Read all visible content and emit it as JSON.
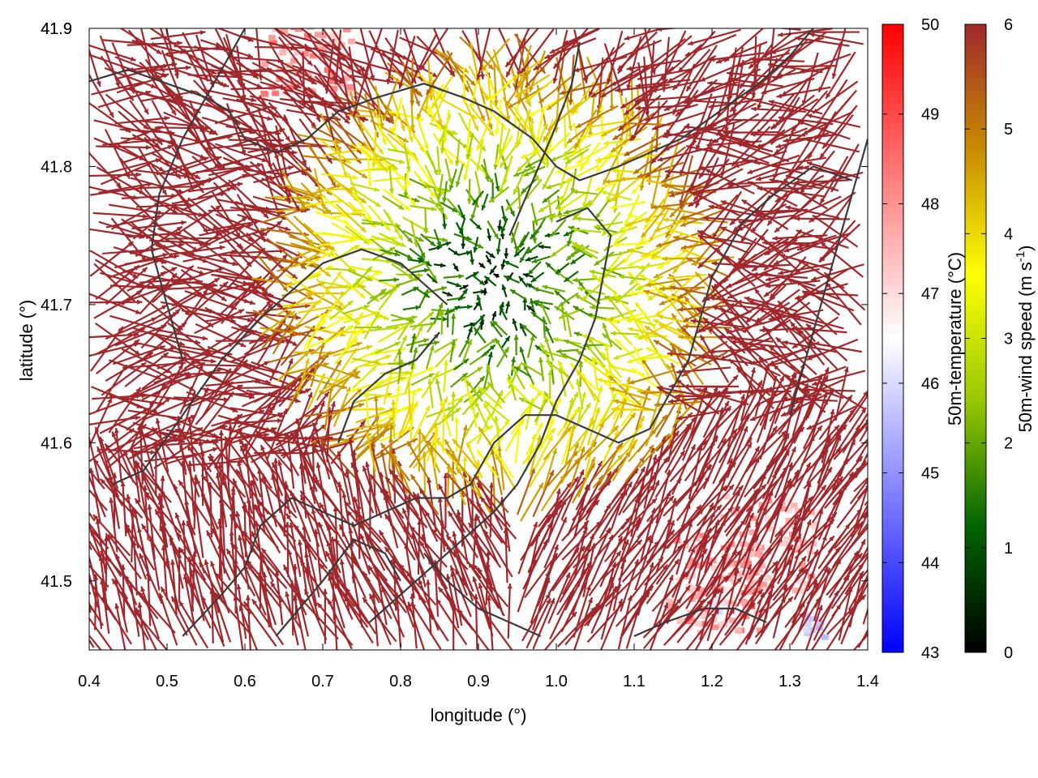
{
  "chart_data": {
    "type": "vector-field",
    "xlabel": "longitude (°)",
    "ylabel": "latitude (°)",
    "xlim": [
      0.4,
      1.4
    ],
    "ylim": [
      41.45,
      41.9
    ],
    "xticks": [
      "0.4",
      "0.5",
      "0.6",
      "0.7",
      "0.8",
      "0.9",
      "1.0",
      "1.1",
      "1.2",
      "1.3",
      "1.4"
    ],
    "yticks": [
      "41.5",
      "41.6",
      "41.7",
      "41.8",
      "41.9"
    ],
    "wind_sample_grid_deg": 0.015,
    "temperature_colorbar": {
      "label": "50m-temperature (°C)",
      "range": [
        43,
        50
      ],
      "ticks": [
        "43",
        "44",
        "45",
        "46",
        "47",
        "48",
        "49",
        "50"
      ],
      "colors": [
        "#0000ff",
        "#ffffff",
        "#ff0000"
      ]
    },
    "windspeed_colorbar": {
      "label": "50m-wind speed (m s",
      "label_superscript": "-1",
      "label_suffix": ")",
      "range": [
        0,
        6
      ],
      "ticks": [
        "0",
        "1",
        "2",
        "3",
        "4",
        "5",
        "6"
      ],
      "colors": [
        "#000000",
        "#006400",
        "#96c800",
        "#ffff00",
        "#c88c00",
        "#a0282c"
      ]
    },
    "calm_zone_center": [
      0.92,
      41.72
    ],
    "warm_patches": [
      {
        "lon": 1.2,
        "lat": 41.5,
        "temp": 48.5
      },
      {
        "lon": 1.27,
        "lat": 41.53,
        "temp": 48.0
      },
      {
        "lon": 0.68,
        "lat": 41.89,
        "temp": 48.5
      }
    ],
    "cool_patches": [
      {
        "lon": 1.21,
        "lat": 41.485,
        "temp": 45.8
      },
      {
        "lon": 1.33,
        "lat": 41.47,
        "temp": 45.5
      }
    ],
    "contour_lines": [
      [
        [
          0.43,
          41.57
        ],
        [
          0.47,
          41.58
        ],
        [
          0.52,
          41.62
        ],
        [
          0.57,
          41.66
        ],
        [
          0.62,
          41.69
        ],
        [
          0.66,
          41.71
        ],
        [
          0.7,
          41.73
        ],
        [
          0.75,
          41.74
        ],
        [
          0.8,
          41.73
        ],
        [
          0.84,
          41.71
        ],
        [
          0.86,
          41.7
        ]
      ],
      [
        [
          0.52,
          41.46
        ],
        [
          0.57,
          41.49
        ],
        [
          0.6,
          41.51
        ],
        [
          0.62,
          41.54
        ],
        [
          0.66,
          41.56
        ],
        [
          0.7,
          41.55
        ],
        [
          0.74,
          41.54
        ],
        [
          0.78,
          41.55
        ],
        [
          0.82,
          41.56
        ],
        [
          0.86,
          41.56
        ],
        [
          0.89,
          41.57
        ],
        [
          0.92,
          41.6
        ],
        [
          0.96,
          41.62
        ],
        [
          1.0,
          41.62
        ],
        [
          1.04,
          41.61
        ],
        [
          1.08,
          41.6
        ],
        [
          1.12,
          41.61
        ],
        [
          1.17,
          41.66
        ],
        [
          1.2,
          41.72
        ],
        [
          1.24,
          41.76
        ],
        [
          1.28,
          41.78
        ],
        [
          1.33,
          41.8
        ],
        [
          1.38,
          41.79
        ]
      ],
      [
        [
          0.76,
          41.47
        ],
        [
          0.8,
          41.49
        ],
        [
          0.84,
          41.51
        ],
        [
          0.88,
          41.53
        ],
        [
          0.92,
          41.55
        ],
        [
          0.95,
          41.57
        ],
        [
          0.98,
          41.6
        ],
        [
          1.0,
          41.63
        ],
        [
          1.03,
          41.66
        ],
        [
          1.05,
          41.69
        ],
        [
          1.06,
          41.72
        ],
        [
          1.07,
          41.75
        ],
        [
          1.04,
          41.77
        ],
        [
          1.0,
          41.76
        ]
      ],
      [
        [
          0.39,
          41.86
        ],
        [
          0.45,
          41.87
        ],
        [
          0.5,
          41.86
        ],
        [
          0.55,
          41.85
        ],
        [
          0.58,
          41.84
        ],
        [
          0.6,
          41.82
        ],
        [
          0.64,
          41.81
        ],
        [
          0.68,
          41.82
        ],
        [
          0.72,
          41.84
        ],
        [
          0.77,
          41.85
        ],
        [
          0.83,
          41.86
        ],
        [
          0.88,
          41.85
        ],
        [
          0.92,
          41.84
        ],
        [
          0.97,
          41.82
        ],
        [
          1.0,
          41.8
        ],
        [
          1.03,
          41.79
        ],
        [
          1.08,
          41.8
        ],
        [
          1.12,
          41.81
        ],
        [
          1.16,
          41.82
        ],
        [
          1.21,
          41.84
        ],
        [
          1.26,
          41.86
        ],
        [
          1.3,
          41.88
        ],
        [
          1.33,
          41.9
        ]
      ],
      [
        [
          0.52,
          41.66
        ],
        [
          0.5,
          41.7
        ],
        [
          0.48,
          41.74
        ],
        [
          0.49,
          41.78
        ],
        [
          0.52,
          41.82
        ],
        [
          0.55,
          41.85
        ],
        [
          0.58,
          41.88
        ],
        [
          0.6,
          41.9
        ]
      ],
      [
        [
          0.72,
          41.6
        ],
        [
          0.74,
          41.63
        ],
        [
          0.78,
          41.65
        ],
        [
          0.82,
          41.66
        ],
        [
          0.85,
          41.68
        ]
      ],
      [
        [
          0.83,
          41.52
        ],
        [
          0.86,
          41.5
        ],
        [
          0.9,
          41.48
        ],
        [
          0.94,
          41.47
        ],
        [
          0.98,
          41.46
        ]
      ],
      [
        [
          1.1,
          41.46
        ],
        [
          1.14,
          41.47
        ],
        [
          1.19,
          41.48
        ],
        [
          1.23,
          41.48
        ],
        [
          1.27,
          41.47
        ]
      ],
      [
        [
          0.94,
          41.75
        ],
        [
          0.97,
          41.79
        ],
        [
          1.0,
          41.83
        ],
        [
          1.02,
          41.86
        ],
        [
          1.03,
          41.89
        ]
      ],
      [
        [
          1.3,
          41.62
        ],
        [
          1.32,
          41.66
        ],
        [
          1.34,
          41.7
        ],
        [
          1.36,
          41.74
        ],
        [
          1.38,
          41.78
        ],
        [
          1.4,
          41.82
        ]
      ],
      [
        [
          0.64,
          41.46
        ],
        [
          0.7,
          41.5
        ],
        [
          0.74,
          41.53
        ],
        [
          0.78,
          41.52
        ],
        [
          0.8,
          41.5
        ]
      ]
    ]
  }
}
